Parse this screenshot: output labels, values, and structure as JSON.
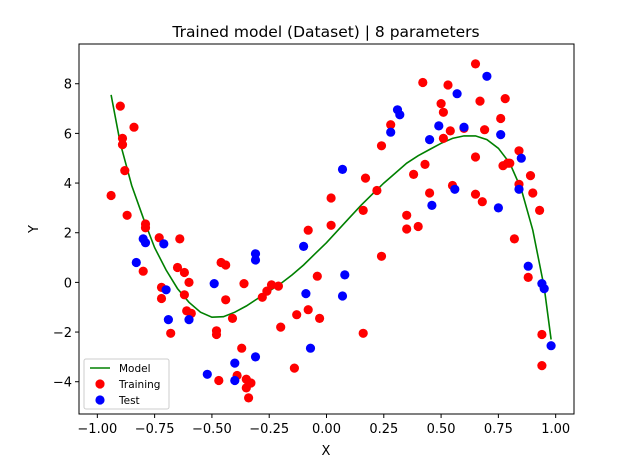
{
  "colors": {
    "model": "#008000",
    "training": "#ff0000",
    "test": "#0000ff"
  },
  "chart_data": {
    "type": "scatter",
    "title": "Trained model (Dataset) | 8 parameters",
    "xlabel": "X",
    "ylabel": "Y",
    "xlim": [
      -1.08,
      1.08
    ],
    "ylim": [
      -5.3,
      9.6
    ],
    "xticks": [
      -1.0,
      -0.75,
      -0.5,
      -0.25,
      0.0,
      0.25,
      0.5,
      0.75,
      1.0
    ],
    "xtick_labels": [
      "−1.00",
      "−0.75",
      "−0.50",
      "−0.25",
      "0.00",
      "0.25",
      "0.50",
      "0.75",
      "1.00"
    ],
    "yticks": [
      -4,
      -2,
      0,
      2,
      4,
      6,
      8
    ],
    "ytick_labels": [
      "−4",
      "−2",
      "0",
      "2",
      "4",
      "6",
      "8"
    ],
    "grid": false,
    "legend_position": "lower-left",
    "legend": [
      "Model",
      "Training",
      "Test"
    ],
    "series": [
      {
        "name": "Model",
        "kind": "line",
        "color": "#008000",
        "x": [
          -0.94,
          -0.9,
          -0.85,
          -0.8,
          -0.75,
          -0.7,
          -0.65,
          -0.6,
          -0.55,
          -0.5,
          -0.45,
          -0.4,
          -0.35,
          -0.3,
          -0.25,
          -0.2,
          -0.15,
          -0.1,
          -0.05,
          0.0,
          0.05,
          0.1,
          0.15,
          0.2,
          0.25,
          0.3,
          0.35,
          0.4,
          0.45,
          0.5,
          0.55,
          0.6,
          0.65,
          0.7,
          0.75,
          0.8,
          0.85,
          0.9,
          0.95,
          0.98
        ],
        "y": [
          7.55,
          5.6,
          3.9,
          2.6,
          1.4,
          0.5,
          -0.25,
          -0.8,
          -1.2,
          -1.4,
          -1.38,
          -1.2,
          -0.95,
          -0.65,
          -0.35,
          -0.05,
          0.3,
          0.7,
          1.15,
          1.6,
          2.1,
          2.6,
          3.1,
          3.55,
          4.0,
          4.4,
          4.8,
          5.1,
          5.35,
          5.6,
          5.8,
          5.9,
          5.9,
          5.75,
          5.4,
          4.8,
          3.75,
          2.1,
          -0.2,
          -2.3
        ]
      },
      {
        "name": "Training",
        "kind": "scatter",
        "color": "#ff0000",
        "x": [
          -0.94,
          -0.9,
          -0.89,
          -0.89,
          -0.88,
          -0.87,
          -0.84,
          -0.8,
          -0.79,
          -0.79,
          -0.73,
          -0.72,
          -0.72,
          -0.68,
          -0.65,
          -0.64,
          -0.62,
          -0.62,
          -0.61,
          -0.6,
          -0.59,
          -0.48,
          -0.48,
          -0.47,
          -0.46,
          -0.44,
          -0.44,
          -0.41,
          -0.39,
          -0.37,
          -0.36,
          -0.35,
          -0.35,
          -0.34,
          -0.33,
          -0.28,
          -0.26,
          -0.24,
          -0.21,
          -0.2,
          -0.14,
          -0.13,
          -0.08,
          -0.08,
          -0.04,
          -0.03,
          0.02,
          0.02,
          0.16,
          0.16,
          0.17,
          0.22,
          0.24,
          0.24,
          0.28,
          0.35,
          0.35,
          0.38,
          0.4,
          0.42,
          0.43,
          0.45,
          0.5,
          0.51,
          0.51,
          0.53,
          0.54,
          0.55,
          0.6,
          0.65,
          0.65,
          0.65,
          0.67,
          0.68,
          0.69,
          0.76,
          0.77,
          0.78,
          0.79,
          0.8,
          0.82,
          0.84,
          0.84,
          0.88,
          0.89,
          0.9,
          0.93,
          0.94,
          0.94
        ],
        "y": [
          3.5,
          7.1,
          5.8,
          5.55,
          4.5,
          2.7,
          6.25,
          0.45,
          2.35,
          2.2,
          1.8,
          -0.2,
          -0.65,
          -2.05,
          0.6,
          1.75,
          -0.5,
          0.4,
          -1.15,
          0.0,
          -1.25,
          -1.95,
          -2.1,
          -3.95,
          0.8,
          0.7,
          -0.7,
          -1.45,
          -3.75,
          -2.65,
          -0.05,
          -3.9,
          -4.25,
          -4.65,
          -4.05,
          -0.6,
          -0.35,
          -0.1,
          -0.15,
          -1.8,
          -3.45,
          -1.3,
          2.1,
          -1.1,
          0.25,
          -1.45,
          2.3,
          3.4,
          -2.05,
          2.9,
          4.2,
          3.7,
          5.5,
          1.05,
          6.35,
          2.7,
          2.15,
          4.35,
          2.25,
          8.05,
          4.75,
          3.6,
          7.2,
          5.8,
          6.85,
          7.95,
          6.1,
          3.9,
          6.2,
          5.05,
          8.8,
          3.55,
          7.3,
          3.25,
          6.15,
          6.6,
          4.7,
          7.4,
          4.8,
          4.8,
          1.75,
          3.95,
          5.3,
          0.2,
          4.3,
          3.6,
          2.9,
          -3.35,
          -2.1
        ]
      },
      {
        "name": "Test",
        "kind": "scatter",
        "color": "#0000ff",
        "x": [
          -0.83,
          -0.8,
          -0.79,
          -0.71,
          -0.7,
          -0.69,
          -0.6,
          -0.52,
          -0.49,
          -0.4,
          -0.4,
          -0.31,
          -0.31,
          -0.31,
          -0.1,
          -0.09,
          -0.07,
          0.07,
          0.08,
          0.07,
          0.28,
          0.31,
          0.32,
          0.45,
          0.46,
          0.49,
          0.56,
          0.57,
          0.6,
          0.7,
          0.75,
          0.76,
          0.84,
          0.85,
          0.88,
          0.94,
          0.95,
          0.98
        ],
        "y": [
          0.8,
          1.75,
          1.6,
          1.55,
          -0.3,
          -1.5,
          -1.5,
          -3.7,
          -0.05,
          -3.25,
          -3.95,
          -3.0,
          0.9,
          1.15,
          1.45,
          -0.45,
          -2.65,
          4.55,
          0.3,
          -0.55,
          6.05,
          6.95,
          6.75,
          5.75,
          3.1,
          6.3,
          3.75,
          7.6,
          6.25,
          8.3,
          3.0,
          5.95,
          3.75,
          5.0,
          0.65,
          -0.05,
          -0.25,
          -2.55
        ]
      }
    ]
  }
}
